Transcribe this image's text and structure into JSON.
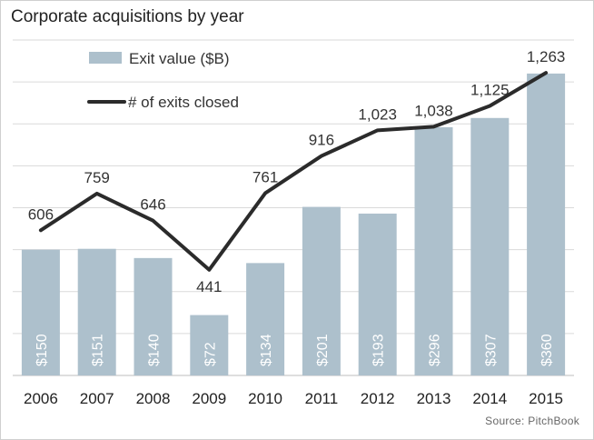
{
  "chart_data": {
    "type": "bar",
    "title": "Corporate acquisitions by year",
    "categories": [
      "2006",
      "2007",
      "2008",
      "2009",
      "2010",
      "2011",
      "2012",
      "2013",
      "2014",
      "2015"
    ],
    "series": [
      {
        "name": "Exit value ($B)",
        "type": "bar",
        "values": [
          150,
          151,
          140,
          72,
          134,
          201,
          193,
          296,
          307,
          360
        ],
        "labels": [
          "$150",
          "$151",
          "$140",
          "$72",
          "$134",
          "$201",
          "$193",
          "$296",
          "$307",
          "$360"
        ],
        "color": "#adc0cc"
      },
      {
        "name": "# of exits closed",
        "type": "line",
        "values": [
          606,
          759,
          646,
          441,
          761,
          916,
          1023,
          1038,
          1125,
          1263
        ],
        "labels": [
          "606",
          "759",
          "646",
          "441",
          "761",
          "916",
          "1,023",
          "1,038",
          "1,125",
          "1,263"
        ],
        "color": "#2b2b2b"
      }
    ],
    "grid": true,
    "legend": "top-left",
    "source": "Source: PitchBook"
  }
}
